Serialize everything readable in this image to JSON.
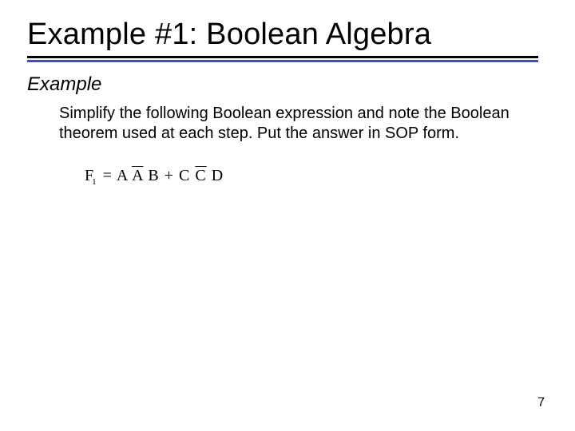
{
  "slide": {
    "title": "Example #1: Boolean Algebra",
    "example_label": "Example",
    "body": "Simplify the following Boolean expression and note the Boolean theorem used at each step. Put the answer in SOP form.",
    "formula": {
      "lhs_var": "F",
      "lhs_sub": "1",
      "eq": "=",
      "t1_a": "A",
      "t1_b_bar": "A",
      "t1_c": "B",
      "plus": "+",
      "t2_a": "C",
      "t2_b_bar": "C",
      "t2_c": "D"
    },
    "page_number": "7",
    "colors": {
      "rule_black": "#000000",
      "rule_blue": "#3b4fc8",
      "text": "#000000",
      "background": "#ffffff"
    }
  }
}
